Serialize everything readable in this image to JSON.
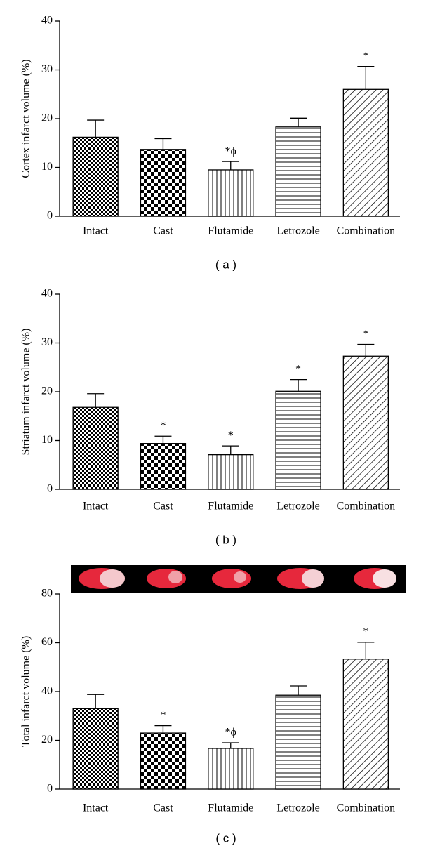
{
  "chart_data": [
    {
      "type": "bar",
      "y_label": "Cortex infarct volume (%)",
      "caption": "( a )",
      "categories": [
        "Intact",
        "Cast",
        "Flutamide",
        "Letrozole",
        "Combination"
      ],
      "values": [
        16.2,
        13.7,
        9.5,
        18.3,
        26.0
      ],
      "errors": [
        3.5,
        2.2,
        1.7,
        1.8,
        4.7
      ],
      "annotations": [
        null,
        null,
        "*ϕ",
        null,
        "*"
      ],
      "ylim": [
        0,
        40
      ],
      "yticks": [
        0,
        10,
        20,
        30,
        40
      ],
      "color": "#000000"
    },
    {
      "type": "bar",
      "y_label": "Striatum infarct volume (%)",
      "caption": "( b )",
      "categories": [
        "Intact",
        "Cast",
        "Flutamide",
        "Letrozole",
        "Combination"
      ],
      "values": [
        16.8,
        9.4,
        7.1,
        20.1,
        27.3
      ],
      "errors": [
        2.8,
        1.5,
        1.8,
        2.4,
        2.4
      ],
      "annotations": [
        null,
        "*",
        "*",
        "*",
        "*"
      ],
      "ylim": [
        0,
        40
      ],
      "yticks": [
        0,
        10,
        20,
        30,
        40
      ],
      "color": "#000000"
    },
    {
      "type": "bar",
      "y_label": "Total infarct volume (%)",
      "caption": "( c )",
      "categories": [
        "Intact",
        "Cast",
        "Flutamide",
        "Letrozole",
        "Combination"
      ],
      "values": [
        33.0,
        23.0,
        16.7,
        38.5,
        53.3
      ],
      "errors": [
        5.8,
        3.0,
        2.3,
        3.8,
        6.9
      ],
      "annotations": [
        null,
        "*",
        "*ϕ",
        null,
        "*"
      ],
      "ylim": [
        0,
        80
      ],
      "yticks": [
        0,
        20,
        40,
        60,
        80
      ],
      "color": "#000000"
    }
  ]
}
